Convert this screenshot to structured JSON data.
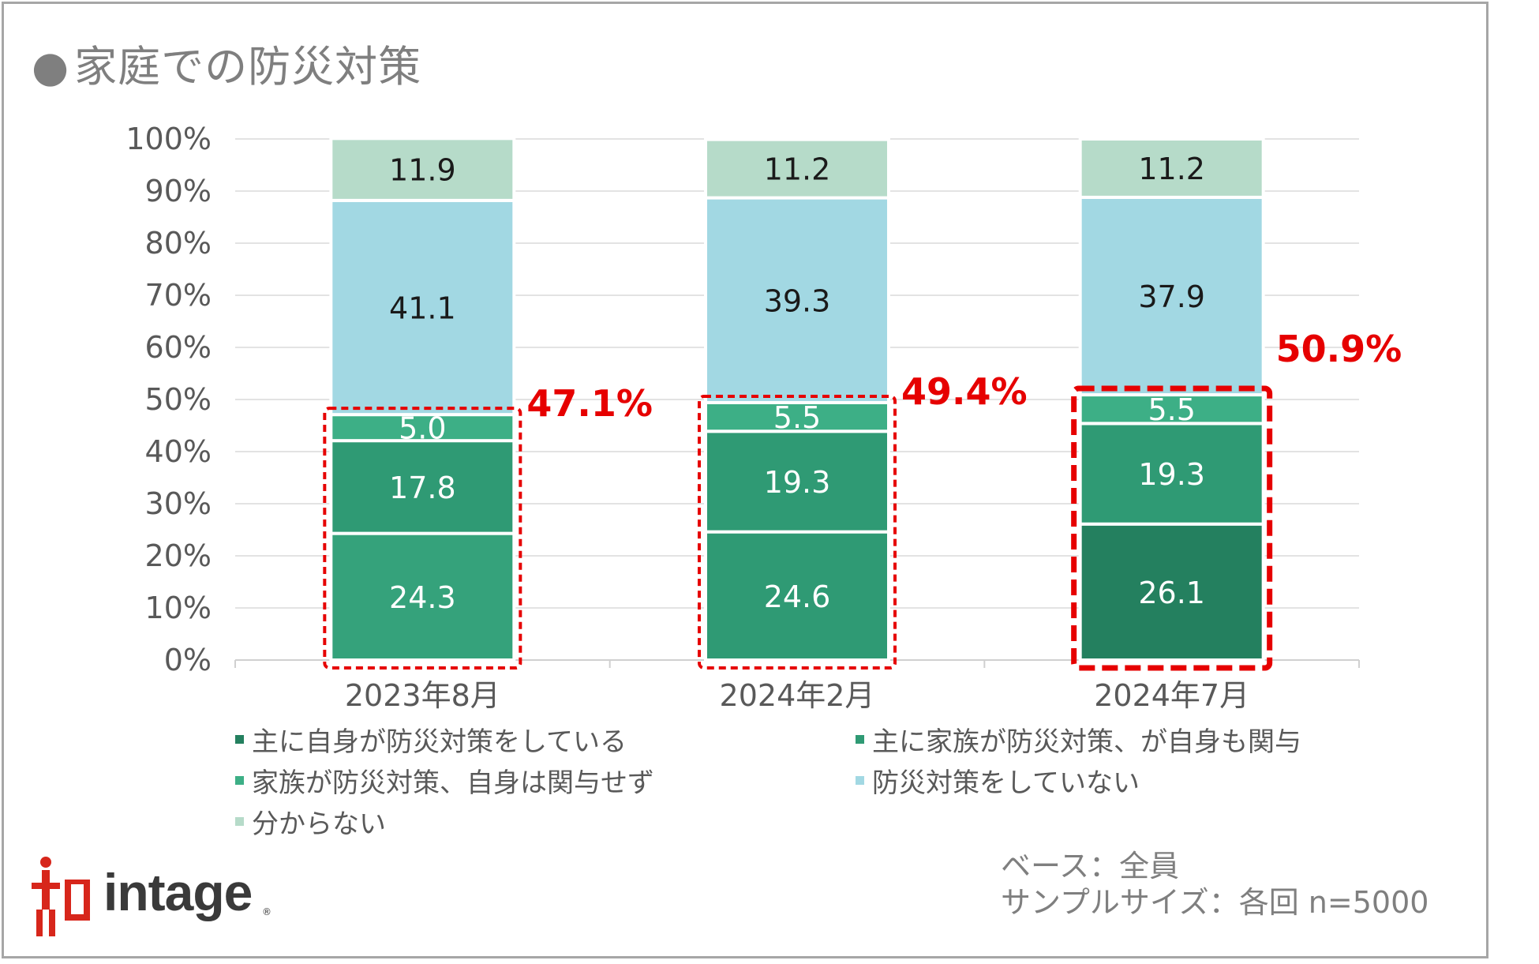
{
  "title": "家庭での防災対策",
  "title_bullet": "●",
  "chart_data": {
    "type": "bar",
    "stacked": true,
    "title": "家庭での防災対策",
    "categories": [
      "2023年8月",
      "2024年2月",
      "2024年7月"
    ],
    "yaxis": {
      "ticks": [
        "0%",
        "10%",
        "20%",
        "30%",
        "40%",
        "50%",
        "60%",
        "70%",
        "80%",
        "90%",
        "100%"
      ],
      "ylim": [
        0,
        100
      ]
    },
    "series": [
      {
        "name": "主に自身が防災対策をしている",
        "color": "#24805f",
        "values": [
          24.3,
          24.6,
          26.1
        ]
      },
      {
        "name": "主に家族が防災対策、が自身も関与",
        "color": "#2f9a74",
        "values": [
          17.8,
          19.3,
          19.3
        ]
      },
      {
        "name": "家族が防災対策、自身は関与せず",
        "color": "#3daf86",
        "values": [
          5.0,
          5.5,
          5.5
        ]
      },
      {
        "name": "防災対策をしていない",
        "color": "#a2d8e3",
        "values": [
          41.1,
          39.3,
          37.9
        ]
      },
      {
        "name": "分からない",
        "color": "#b6dbc9",
        "values": [
          11.9,
          11.2,
          11.2
        ]
      }
    ],
    "data_labels": [
      [
        "24.3",
        "24.6",
        "26.1"
      ],
      [
        "17.8",
        "19.3",
        "19.3"
      ],
      [
        "5.0",
        "5.5",
        "5.5"
      ],
      [
        "41.1",
        "39.3",
        "37.9"
      ],
      [
        "11.9",
        "11.2",
        "11.2"
      ]
    ],
    "segment_colors": [
      [
        "#35a27b",
        "#2f9a74",
        "#24805f"
      ],
      [
        "#2f9a74",
        "#2f9a74",
        "#2f9a74"
      ],
      [
        "#3daf86",
        "#3daf86",
        "#3daf86"
      ],
      [
        "#a2d8e3",
        "#a2d8e3",
        "#a2d8e3"
      ],
      [
        "#b6dbc9",
        "#b6dbc9",
        "#b6dbc9"
      ]
    ],
    "callouts": [
      {
        "label": "47.1%",
        "value": 47.1
      },
      {
        "label": "49.4%",
        "value": 49.4
      },
      {
        "label": "50.9%",
        "value": 50.9
      }
    ],
    "highlight_color": "#e60000"
  },
  "legend": [
    {
      "label": "主に自身が防災対策をしている",
      "color": "#24805f"
    },
    {
      "label": "主に家族が防災対策、が自身も関与",
      "color": "#2f9a74"
    },
    {
      "label": "家族が防災対策、自身は関与せず",
      "color": "#3daf86"
    },
    {
      "label": "防災対策をしていない",
      "color": "#a2d8e3"
    },
    {
      "label": "分からない",
      "color": "#b6dbc9"
    }
  ],
  "logo": {
    "text": "intage",
    "mark": "知"
  },
  "notes": {
    "base": "ベース：全員",
    "sample": "サンプルサイズ：各回 n=5000"
  }
}
